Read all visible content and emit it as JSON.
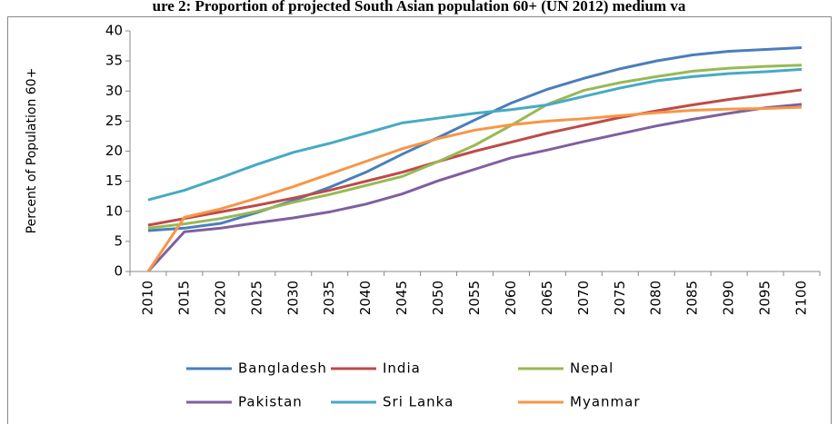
{
  "chart_data": {
    "type": "line",
    "title": "ure 2: Proportion of projected South Asian population 60+ (UN 2012) medium va",
    "y_label": "Percent of Population 60+",
    "categories": [
      "2010",
      "2015",
      "2020",
      "2025",
      "2030",
      "2035",
      "2040",
      "2045",
      "2050",
      "2055",
      "2060",
      "2065",
      "2070",
      "2075",
      "2080",
      "2085",
      "2090",
      "2095",
      "2100"
    ],
    "series": [
      {
        "name": "Bangladesh",
        "color": "#4a7ebb",
        "values": [
          6.8,
          7.2,
          8.0,
          9.8,
          11.8,
          14,
          16.5,
          19.5,
          22.3,
          25.2,
          28,
          30.3,
          32.1,
          33.7,
          35,
          36,
          36.6,
          36.9,
          37.2
        ]
      },
      {
        "name": "India",
        "color": "#be4b48",
        "values": [
          7.7,
          8.8,
          9.9,
          11,
          12.2,
          13.5,
          15,
          16.5,
          18.3,
          20,
          21.5,
          23,
          24.3,
          25.6,
          26.7,
          27.7,
          28.6,
          29.4,
          30.2
        ]
      },
      {
        "name": "Nepal",
        "color": "#98b954",
        "values": [
          7.2,
          7.9,
          8.8,
          10,
          11.5,
          12.8,
          14.3,
          15.8,
          18.3,
          21,
          24.3,
          27.8,
          30.1,
          31.4,
          32.4,
          33.3,
          33.8,
          34.1,
          34.3
        ]
      },
      {
        "name": "Pakistan",
        "color": "#7d60a0",
        "values": [
          0,
          6.6,
          7.2,
          8.1,
          8.9,
          9.9,
          11.2,
          12.9,
          15.1,
          17,
          18.9,
          20.2,
          21.6,
          22.9,
          24.2,
          25.3,
          26.3,
          27.2,
          27.8
        ]
      },
      {
        "name": "Sri Lanka",
        "color": "#46aac5",
        "values": [
          11.9,
          13.5,
          15.6,
          17.8,
          19.8,
          21.3,
          23,
          24.7,
          25.5,
          26.3,
          26.9,
          27.7,
          29.1,
          30.5,
          31.7,
          32.4,
          32.9,
          33.2,
          33.6
        ]
      },
      {
        "name": "Myanmar",
        "color": "#f79646",
        "values": [
          0,
          9.0,
          10.4,
          12.2,
          14.1,
          16.2,
          18.3,
          20.4,
          22.1,
          23.5,
          24.4,
          25,
          25.4,
          25.9,
          26.4,
          26.8,
          27,
          27.1,
          27.3
        ]
      }
    ],
    "ylim": [
      0,
      40
    ],
    "yticks": [
      0,
      5,
      10,
      15,
      20,
      25,
      30,
      35,
      40
    ]
  }
}
